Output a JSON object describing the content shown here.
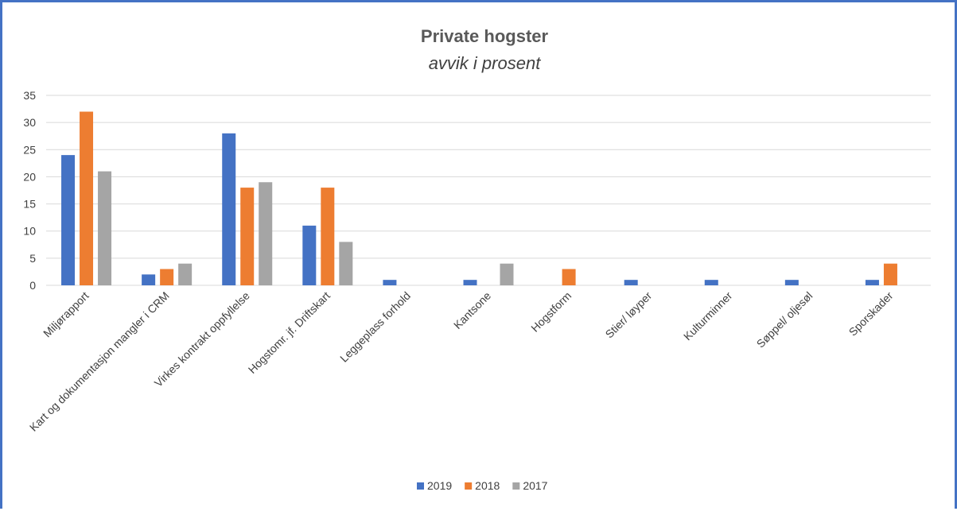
{
  "chart_data": {
    "type": "bar",
    "title": "Private hogster",
    "subtitle": "avvik i prosent",
    "categories": [
      "Miljørapport",
      "Kart og dokumentasjon mangler i CRM",
      "Virkes kontrakt oppfyllelse",
      "Hogstomr. jf. Driftskart",
      "Leggeplass forhold",
      "Kantsone",
      "Hogstform",
      "Stier/ løyper",
      "Kulturminner",
      "Søppel/ oljesøl",
      "Sporskader"
    ],
    "series": [
      {
        "name": "2019",
        "color": "#4472c4",
        "values": [
          24,
          2,
          28,
          11,
          1,
          1,
          0,
          1,
          1,
          1,
          1
        ]
      },
      {
        "name": "2018",
        "color": "#ed7d31",
        "values": [
          32,
          3,
          18,
          18,
          0,
          0,
          3,
          0,
          0,
          0,
          4
        ]
      },
      {
        "name": "2017",
        "color": "#a5a5a5",
        "values": [
          21,
          4,
          19,
          8,
          0,
          4,
          0,
          0,
          0,
          0,
          0
        ]
      }
    ],
    "ylim": [
      0,
      35
    ],
    "yticks": [
      0,
      5,
      10,
      15,
      20,
      25,
      30,
      35
    ],
    "grid": true,
    "legend_position": "bottom"
  }
}
